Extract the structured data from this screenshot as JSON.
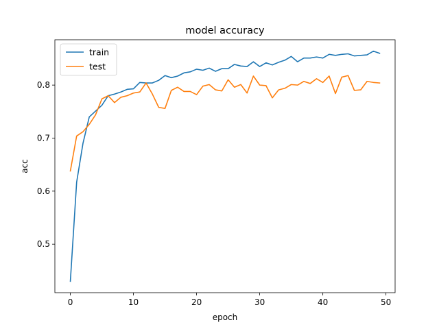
{
  "chart_data": {
    "type": "line",
    "title": "model accuracy",
    "xlabel": "epoch",
    "ylabel": "acc",
    "xlim": [
      -2.45,
      51.45
    ],
    "ylim": [
      0.4085,
      0.8855
    ],
    "x_ticks": [
      0,
      10,
      20,
      30,
      40,
      50
    ],
    "y_ticks": [
      0.5,
      0.6,
      0.7,
      0.8
    ],
    "y_tick_labels": [
      "0.5",
      "0.6",
      "0.7",
      "0.8"
    ],
    "grid": false,
    "legend_position": "upper-left",
    "x": [
      0,
      1,
      2,
      3,
      4,
      5,
      6,
      7,
      8,
      9,
      10,
      11,
      12,
      13,
      14,
      15,
      16,
      17,
      18,
      19,
      20,
      21,
      22,
      23,
      24,
      25,
      26,
      27,
      28,
      29,
      30,
      31,
      32,
      33,
      34,
      35,
      36,
      37,
      38,
      39,
      40,
      41,
      42,
      43,
      44,
      45,
      46,
      47,
      48,
      49
    ],
    "series": [
      {
        "name": "train",
        "color": "#1f77b4",
        "values": [
          0.43,
          0.617,
          0.69,
          0.74,
          0.751,
          0.762,
          0.78,
          0.783,
          0.787,
          0.792,
          0.793,
          0.805,
          0.804,
          0.804,
          0.809,
          0.818,
          0.814,
          0.817,
          0.823,
          0.825,
          0.83,
          0.828,
          0.832,
          0.826,
          0.831,
          0.831,
          0.839,
          0.836,
          0.835,
          0.844,
          0.835,
          0.842,
          0.838,
          0.843,
          0.847,
          0.854,
          0.844,
          0.851,
          0.851,
          0.853,
          0.851,
          0.858,
          0.856,
          0.858,
          0.859,
          0.855,
          0.856,
          0.857,
          0.864,
          0.86
        ]
      },
      {
        "name": "test",
        "color": "#ff7f0e",
        "values": [
          0.638,
          0.704,
          0.712,
          0.726,
          0.744,
          0.774,
          0.78,
          0.767,
          0.777,
          0.78,
          0.785,
          0.787,
          0.804,
          0.783,
          0.758,
          0.756,
          0.79,
          0.796,
          0.788,
          0.788,
          0.782,
          0.798,
          0.801,
          0.791,
          0.789,
          0.81,
          0.796,
          0.801,
          0.785,
          0.817,
          0.8,
          0.799,
          0.776,
          0.791,
          0.794,
          0.801,
          0.8,
          0.807,
          0.803,
          0.812,
          0.805,
          0.817,
          0.784,
          0.815,
          0.818,
          0.79,
          0.791,
          0.807,
          0.805,
          0.804
        ]
      }
    ]
  }
}
